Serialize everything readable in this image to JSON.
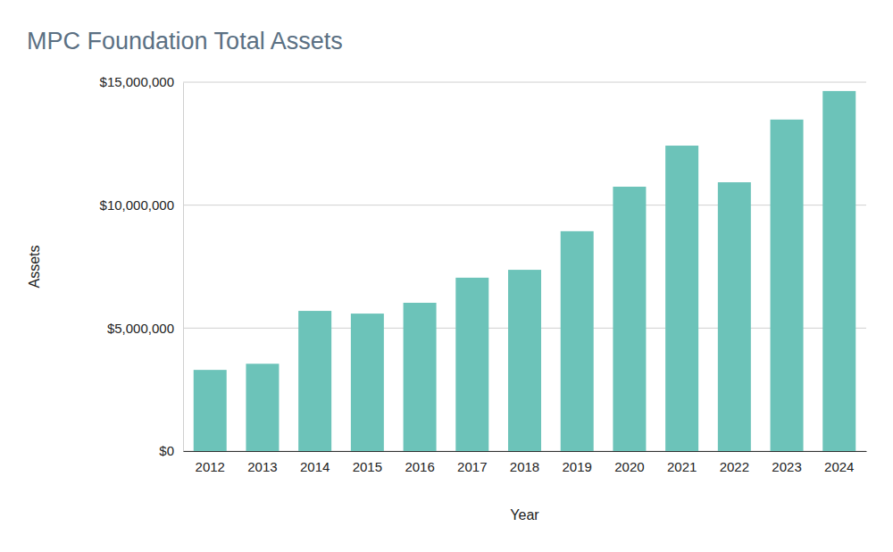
{
  "chart_data": {
    "type": "bar",
    "title": "MPC Foundation Total Assets",
    "xlabel": "Year",
    "ylabel": "Assets",
    "categories": [
      "2012",
      "2013",
      "2014",
      "2015",
      "2016",
      "2017",
      "2018",
      "2019",
      "2020",
      "2021",
      "2022",
      "2023",
      "2024"
    ],
    "values": [
      3300000,
      3550000,
      5700000,
      5590000,
      6030000,
      7050000,
      7370000,
      8940000,
      10750000,
      12420000,
      10930000,
      13480000,
      14640000
    ],
    "color": "#6cc3b9",
    "ylim": [
      0,
      15000000
    ],
    "yticks": [
      {
        "value": 0,
        "label": "$0"
      },
      {
        "value": 5000000,
        "label": "$5,000,000"
      },
      {
        "value": 10000000,
        "label": "$10,000,000"
      },
      {
        "value": 15000000,
        "label": "$15,000,000"
      }
    ],
    "grid": true
  }
}
